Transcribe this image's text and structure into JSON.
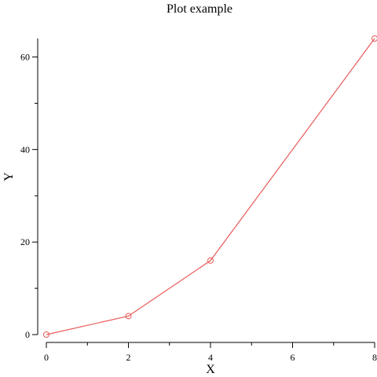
{
  "chart_data": {
    "type": "line",
    "title": "Plot example",
    "xlabel": "X",
    "ylabel": "Y",
    "xlim": [
      0,
      8
    ],
    "ylim": [
      0,
      64
    ],
    "x_major_ticks": [
      0,
      2,
      4,
      6,
      8
    ],
    "x_minor_ticks": [
      1,
      3,
      5,
      7
    ],
    "y_major_ticks": [
      0,
      20,
      40,
      60
    ],
    "y_minor_ticks": [
      10,
      30,
      50
    ],
    "grid": false,
    "series": [
      {
        "color": "#e85a5a",
        "marker": "open-circle",
        "x": [
          0,
          2,
          4,
          8
        ],
        "y": [
          0,
          4,
          16,
          64
        ]
      }
    ]
  }
}
